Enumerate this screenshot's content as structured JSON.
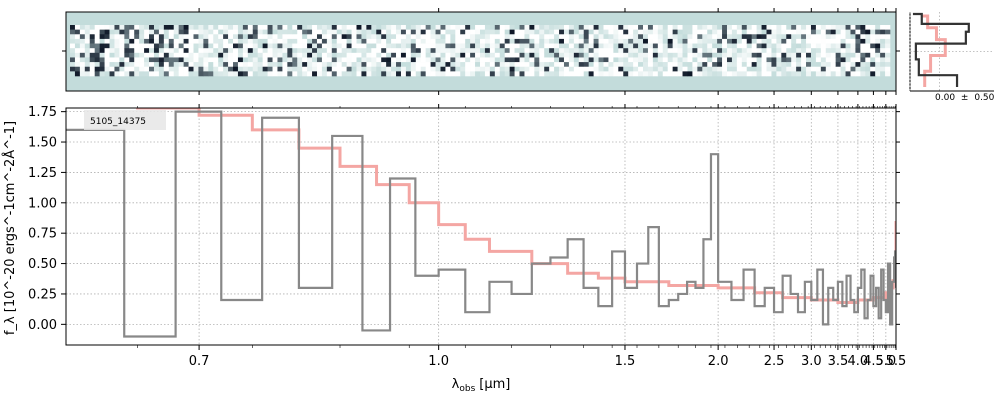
{
  "chart_data": [
    {
      "type": "heatmap",
      "x_range": [
        0.6,
        5.5
      ],
      "cmap": [
        "#ffffff",
        "#c3dcdb",
        "#0d1626"
      ],
      "background": "#c3dcdb"
    },
    {
      "type": "line",
      "annotation": "5105_14375",
      "xlabel_base": "λ",
      "xlabel_sub": "obs",
      "xlabel_unit": "[μm]",
      "ylabel": "f_λ [10^-20 ergs^-1cm^-2Å^-1]",
      "xscale": "reciprocal",
      "xlim": [
        0.6,
        5.5
      ],
      "ylim": [
        -0.17,
        1.78
      ],
      "x_ticks": [
        0.7,
        1.0,
        1.5,
        2.0,
        2.5,
        3.0,
        3.5,
        4.0,
        4.5,
        5.0,
        5.5
      ],
      "x_tick_labels": [
        "0.7",
        "1.0",
        "1.5",
        "2.0",
        "2.5",
        "3.0",
        "3.5",
        "4.0",
        "4.5",
        "5.0",
        "5.5"
      ],
      "y_ticks": [
        0.0,
        0.25,
        0.5,
        0.75,
        1.0,
        1.25,
        1.5,
        1.75
      ],
      "y_tick_labels": [
        "0.00",
        "0.25",
        "0.50",
        "0.75",
        "1.00",
        "1.25",
        "1.50",
        "1.75"
      ],
      "grid": true,
      "series": [
        {
          "color": "#888888",
          "x": [
            0.6,
            0.64,
            0.68,
            0.72,
            0.76,
            0.8,
            0.84,
            0.88,
            0.92,
            0.96,
            1.0,
            1.05,
            1.1,
            1.15,
            1.2,
            1.25,
            1.3,
            1.35,
            1.4,
            1.45,
            1.5,
            1.55,
            1.6,
            1.65,
            1.7,
            1.75,
            1.8,
            1.85,
            1.9,
            1.95,
            2.0,
            2.1,
            2.2,
            2.3,
            2.4,
            2.5,
            2.6,
            2.7,
            2.8,
            2.9,
            3.0,
            3.1,
            3.2,
            3.3,
            3.4,
            3.5,
            3.6,
            3.7,
            3.8,
            3.9,
            4.0,
            4.1,
            4.2,
            4.3,
            4.4,
            4.5,
            4.6,
            4.7,
            4.8,
            4.9,
            5.0,
            5.1,
            5.2,
            5.3,
            5.4,
            5.45,
            5.5
          ],
          "y": [
            1.6,
            -0.1,
            1.75,
            0.2,
            1.7,
            0.3,
            1.55,
            -0.05,
            1.2,
            0.4,
            0.45,
            0.1,
            0.35,
            0.25,
            0.5,
            0.55,
            0.7,
            0.3,
            0.15,
            0.6,
            0.3,
            0.5,
            0.8,
            0.15,
            0.2,
            0.25,
            0.35,
            0.3,
            0.7,
            1.4,
            0.35,
            0.2,
            0.45,
            0.15,
            0.3,
            0.1,
            0.4,
            0.25,
            0.1,
            0.35,
            0.2,
            0.45,
            0.0,
            0.3,
            0.2,
            0.35,
            0.15,
            0.4,
            0.2,
            0.1,
            0.3,
            0.45,
            0.05,
            0.2,
            0.4,
            0.15,
            0.3,
            0.05,
            0.45,
            0.2,
            0.1,
            0.5,
            0.0,
            0.35,
            0.55,
            0.6,
            0.3
          ]
        },
        {
          "color": "#f4a6a3",
          "x": [
            0.6,
            0.65,
            0.7,
            0.75,
            0.8,
            0.85,
            0.9,
            0.95,
            1.0,
            1.05,
            1.1,
            1.2,
            1.3,
            1.4,
            1.5,
            1.7,
            2.0,
            2.3,
            2.6,
            3.0,
            3.5,
            4.0,
            4.5,
            5.0,
            5.2,
            5.35,
            5.45,
            5.5
          ],
          "y": [
            1.8,
            1.78,
            1.72,
            1.6,
            1.45,
            1.3,
            1.15,
            1.0,
            0.82,
            0.7,
            0.6,
            0.5,
            0.42,
            0.38,
            0.35,
            0.32,
            0.3,
            0.26,
            0.22,
            0.2,
            0.18,
            0.2,
            0.22,
            0.26,
            0.3,
            0.36,
            0.5,
            0.85
          ]
        }
      ]
    },
    {
      "type": "line",
      "x_tick_labels": [
        "0.00",
        "±",
        "0.50"
      ],
      "series": [
        {
          "color": "#333333",
          "x": [
            0.8,
            0.15,
            0.1,
            0.95,
            1.0,
            0.2,
            0.05
          ],
          "y": [
            -0.9,
            -0.6,
            -0.2,
            0.2,
            0.5,
            0.7,
            0.95
          ]
        },
        {
          "color": "#f4a6a3",
          "x": [
            0.25,
            0.35,
            0.6,
            0.45,
            0.3,
            0.2
          ],
          "y": [
            -0.9,
            -0.5,
            -0.1,
            0.3,
            0.6,
            0.9
          ]
        }
      ]
    }
  ]
}
